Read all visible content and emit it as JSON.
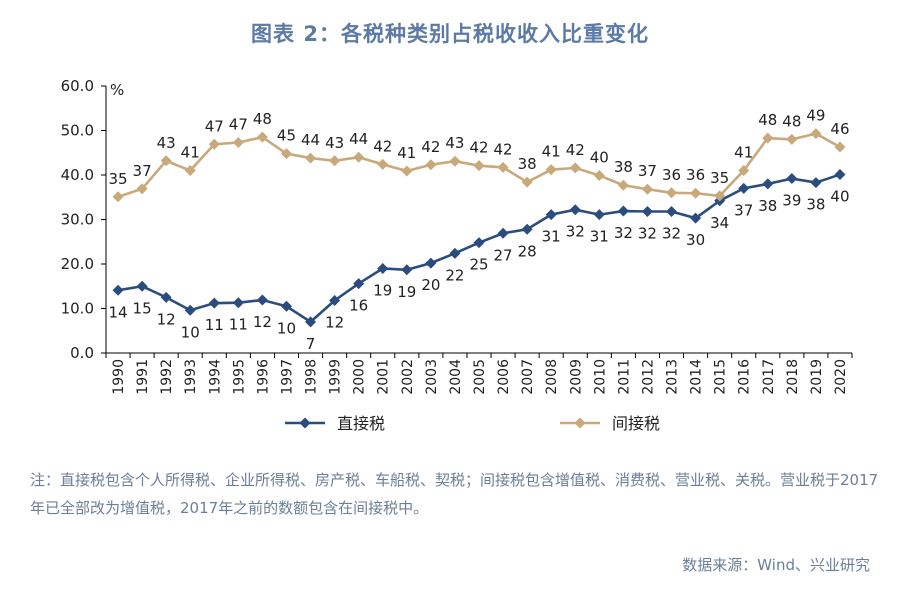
{
  "chart_data": {
    "type": "line",
    "title": "图表 2：各税种类别占税收收入比重变化",
    "ylabel": "%",
    "ylim": [
      0,
      60
    ],
    "yticks": [
      "0.0",
      "10.0",
      "20.0",
      "30.0",
      "40.0",
      "50.0",
      "60.0"
    ],
    "categories": [
      "1990",
      "1991",
      "1992",
      "1993",
      "1994",
      "1995",
      "1996",
      "1997",
      "1998",
      "1999",
      "2000",
      "2001",
      "2002",
      "2003",
      "2004",
      "2005",
      "2006",
      "2007",
      "2008",
      "2009",
      "2010",
      "2011",
      "2012",
      "2013",
      "2014",
      "2015",
      "2016",
      "2017",
      "2018",
      "2019",
      "2020"
    ],
    "series": [
      {
        "name": "直接税",
        "color": "#2b4c7e",
        "marker": "diamond",
        "values": [
          14.1,
          15.0,
          12.5,
          9.6,
          11.2,
          11.3,
          11.9,
          10.5,
          7.0,
          11.8,
          15.6,
          19.0,
          18.7,
          20.2,
          22.4,
          24.8,
          26.9,
          27.8,
          31.1,
          32.2,
          31.1,
          31.9,
          31.8,
          31.8,
          30.3,
          34.2,
          37.0,
          38.0,
          39.2,
          38.3,
          40.1
        ],
        "labels": [
          "14",
          "15",
          "12",
          "10",
          "11",
          "11",
          "12",
          "10",
          "7",
          "12",
          "16",
          "19",
          "19",
          "20",
          "22",
          "25",
          "27",
          "28",
          "31",
          "32",
          "31",
          "32",
          "32",
          "32",
          "30",
          "34",
          "37",
          "38",
          "39",
          "38",
          "40"
        ]
      },
      {
        "name": "间接税",
        "color": "#c9a97a",
        "marker": "diamond",
        "values": [
          35.1,
          36.9,
          43.2,
          41.0,
          46.9,
          47.3,
          48.5,
          44.8,
          43.8,
          43.2,
          44.0,
          42.4,
          40.9,
          42.3,
          43.1,
          42.1,
          41.7,
          38.4,
          41.2,
          41.6,
          39.9,
          37.7,
          36.8,
          36.0,
          35.9,
          35.3,
          41.0,
          48.3,
          48.0,
          49.3,
          46.3
        ],
        "labels": [
          "35",
          "37",
          "43",
          "41",
          "47",
          "47",
          "48",
          "45",
          "44",
          "43",
          "44",
          "42",
          "41",
          "42",
          "43",
          "42",
          "42",
          "38",
          "41",
          "42",
          "40",
          "38",
          "37",
          "36",
          "36",
          "35",
          "41",
          "48",
          "48",
          "49",
          "46"
        ]
      }
    ],
    "grid": false,
    "legend": "bottom"
  },
  "note": "注：直接税包含个人所得税、企业所得税、房产税、车船税、契税；间接税包含增值税、消费税、营业税、关税。营业税于2017年已全部改为增值税，2017年之前的数额包含在间接税中。",
  "source": "数据来源：Wind、兴业研究"
}
